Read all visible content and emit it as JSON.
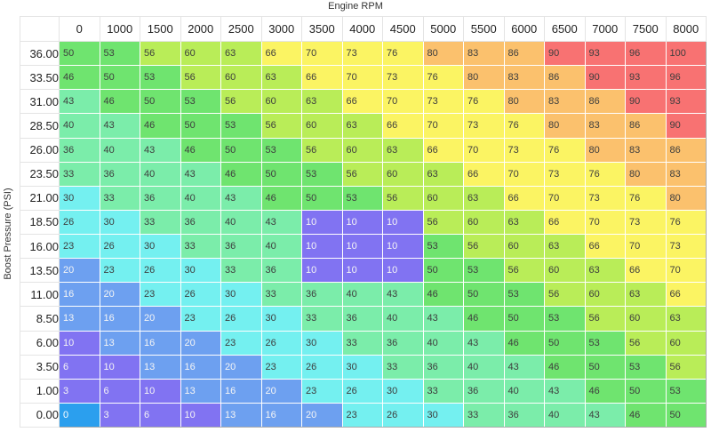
{
  "axes": {
    "x_label": "Engine RPM",
    "y_label": "Boost Pressure (PSI)"
  },
  "chart_data": {
    "type": "heatmap",
    "title": "",
    "xlabel": "Engine RPM",
    "ylabel": "Boost Pressure (PSI)",
    "legend": "none",
    "x_categories": [
      "0",
      "1000",
      "1500",
      "2000",
      "2500",
      "3000",
      "3500",
      "4000",
      "4500",
      "5000",
      "5500",
      "6000",
      "6500",
      "7000",
      "7500",
      "8000"
    ],
    "y_categories": [
      "36.00",
      "33.50",
      "31.00",
      "28.50",
      "26.00",
      "23.50",
      "21.00",
      "18.50",
      "16.00",
      "13.50",
      "11.00",
      "8.50",
      "6.00",
      "3.50",
      "1.00",
      "0.00"
    ],
    "rows": [
      [
        50,
        53,
        56,
        60,
        63,
        66,
        70,
        73,
        76,
        80,
        83,
        86,
        90,
        93,
        96,
        100
      ],
      [
        46,
        50,
        53,
        56,
        60,
        63,
        66,
        70,
        73,
        76,
        80,
        83,
        86,
        90,
        93,
        96
      ],
      [
        43,
        46,
        50,
        53,
        56,
        60,
        63,
        66,
        70,
        73,
        76,
        80,
        83,
        86,
        90,
        93
      ],
      [
        40,
        43,
        46,
        50,
        53,
        56,
        60,
        63,
        66,
        70,
        73,
        76,
        80,
        83,
        86,
        90
      ],
      [
        36,
        40,
        43,
        46,
        50,
        53,
        56,
        60,
        63,
        66,
        70,
        73,
        76,
        80,
        83,
        86
      ],
      [
        33,
        36,
        40,
        43,
        46,
        50,
        53,
        56,
        60,
        63,
        66,
        70,
        73,
        76,
        80,
        83
      ],
      [
        30,
        33,
        36,
        40,
        43,
        46,
        50,
        53,
        56,
        60,
        63,
        66,
        70,
        73,
        76,
        80
      ],
      [
        26,
        30,
        33,
        36,
        40,
        43,
        10,
        10,
        10,
        56,
        60,
        63,
        66,
        70,
        73,
        76
      ],
      [
        23,
        26,
        30,
        33,
        36,
        40,
        10,
        10,
        10,
        53,
        56,
        60,
        63,
        66,
        70,
        73
      ],
      [
        20,
        23,
        26,
        30,
        33,
        36,
        10,
        10,
        10,
        50,
        53,
        56,
        60,
        63,
        66,
        70
      ],
      [
        16,
        20,
        23,
        26,
        30,
        33,
        36,
        40,
        43,
        46,
        50,
        53,
        56,
        60,
        63,
        66
      ],
      [
        13,
        16,
        20,
        23,
        26,
        30,
        33,
        36,
        40,
        43,
        46,
        50,
        53,
        56,
        60,
        63
      ],
      [
        10,
        13,
        16,
        20,
        23,
        26,
        30,
        33,
        36,
        40,
        43,
        46,
        50,
        53,
        56,
        60
      ],
      [
        6,
        10,
        13,
        16,
        20,
        23,
        26,
        30,
        33,
        36,
        40,
        43,
        46,
        50,
        53,
        56
      ],
      [
        3,
        6,
        10,
        13,
        16,
        20,
        23,
        26,
        30,
        33,
        36,
        40,
        43,
        46,
        50,
        53
      ],
      [
        0,
        3,
        6,
        10,
        13,
        16,
        20,
        23,
        26,
        30,
        33,
        36,
        40,
        43,
        46,
        50
      ]
    ]
  },
  "selection": {
    "row_index": 15,
    "col_index": 0,
    "row_label": "0.00",
    "col_label": "0",
    "value": 0
  },
  "color_scale": {
    "bands": [
      {
        "max": 0,
        "bg": "#2b9fee",
        "text": "#ffffff"
      },
      {
        "max": 12,
        "bg": "#8173f2",
        "text": "#f5f5f5"
      },
      {
        "max": 22,
        "bg": "#6da0f0",
        "text": "#f5f5f5"
      },
      {
        "max": 32,
        "bg": "#74f0f0",
        "text": "#3d3d3d"
      },
      {
        "max": 45,
        "bg": "#7bedaa",
        "text": "#3d3d3d"
      },
      {
        "max": 55,
        "bg": "#6fe46f",
        "text": "#3d3d3d"
      },
      {
        "max": 65,
        "bg": "#b9ed58",
        "text": "#3d3d3d"
      },
      {
        "max": 78,
        "bg": "#fbf463",
        "text": "#3d3d3d"
      },
      {
        "max": 88,
        "bg": "#fbc16d",
        "text": "#3d3d3d"
      },
      {
        "max": 100,
        "bg": "#f87272",
        "text": "#3d3d3d"
      }
    ]
  }
}
